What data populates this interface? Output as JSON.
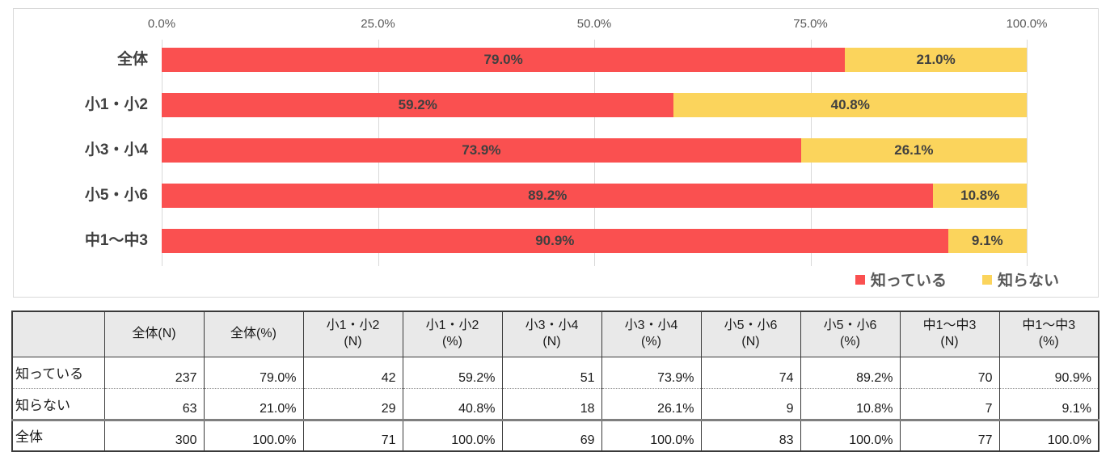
{
  "colors": {
    "series_know": "#fa5050",
    "series_dont_know": "#fbd45c",
    "grid": "#d9d9d9",
    "axis_text": "#595959",
    "data_label_text": "#404040",
    "table_header_bg": "#e9e9e9"
  },
  "chart_data": {
    "type": "bar",
    "orientation": "horizontal",
    "stacked": true,
    "grid": true,
    "legend_position": "bottom-right",
    "xlim": [
      0,
      100
    ],
    "x_ticks": [
      "0.0%",
      "25.0%",
      "50.0%",
      "75.0%",
      "100.0%"
    ],
    "value_suffix": "%",
    "categories": [
      "全体",
      "小1・小2",
      "小3・小4",
      "小5・小6",
      "中1～中3"
    ],
    "series": [
      {
        "name": "知っている",
        "color": "#fa5050",
        "values": [
          79.0,
          59.2,
          73.9,
          89.2,
          90.9
        ]
      },
      {
        "name": "知らない",
        "color": "#fbd45c",
        "values": [
          21.0,
          40.8,
          26.1,
          10.8,
          9.1
        ]
      }
    ]
  },
  "table": {
    "columns": [
      "",
      "全体(N)",
      "全体(%)",
      "小1・小2\n(N)",
      "小1・小2\n(%)",
      "小3・小4\n(N)",
      "小3・小4\n(%)",
      "小5・小6\n(N)",
      "小5・小6\n(%)",
      "中1～中3\n(N)",
      "中1～中3\n(%)"
    ],
    "rows": [
      {
        "label": "知っている",
        "values": [
          "237",
          "79.0%",
          "42",
          "59.2%",
          "51",
          "73.9%",
          "74",
          "89.2%",
          "70",
          "90.9%"
        ]
      },
      {
        "label": "知らない",
        "values": [
          "63",
          "21.0%",
          "29",
          "40.8%",
          "18",
          "26.1%",
          "9",
          "10.8%",
          "7",
          "9.1%"
        ]
      },
      {
        "label": "全体",
        "values": [
          "300",
          "100.0%",
          "71",
          "100.0%",
          "69",
          "100.0%",
          "83",
          "100.0%",
          "77",
          "100.0%"
        ]
      }
    ]
  }
}
